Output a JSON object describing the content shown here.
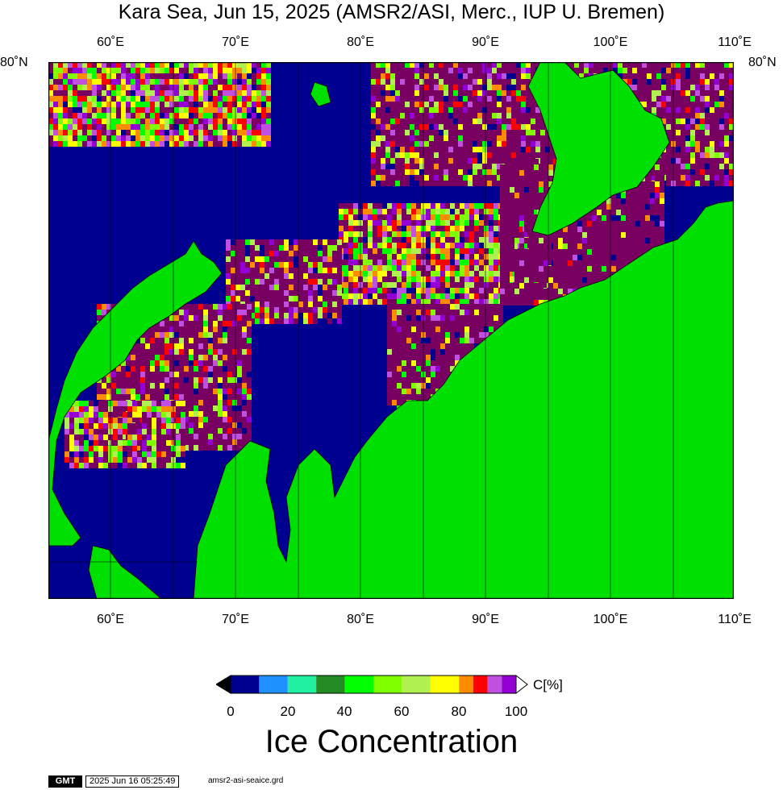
{
  "title": "Kara Sea, Jun 15, 2025 (AMSR2/ASI, Merc., IUP U. Bremen)",
  "map": {
    "lon_ticks": [
      {
        "value": 60,
        "label": "60˚E"
      },
      {
        "value": 70,
        "label": "70˚E"
      },
      {
        "value": 80,
        "label": "80˚E"
      },
      {
        "value": 90,
        "label": "90˚E"
      },
      {
        "value": 100,
        "label": "100˚E"
      },
      {
        "value": 110,
        "label": "110˚E"
      }
    ],
    "lat_label_left": "80˚N",
    "lat_label_right": "80˚N",
    "colors": {
      "open_water": "#000090",
      "land": "#00e000",
      "dense_ice": "#780060",
      "graticule": "#000000"
    }
  },
  "colorbar": {
    "bins": [
      {
        "range": [
          0,
          10
        ],
        "color": "#000090"
      },
      {
        "range": [
          10,
          20
        ],
        "color": "#1e90ff"
      },
      {
        "range": [
          20,
          30
        ],
        "color": "#20f0a0"
      },
      {
        "range": [
          30,
          40
        ],
        "color": "#228b22"
      },
      {
        "range": [
          40,
          50
        ],
        "color": "#00ff00"
      },
      {
        "range": [
          50,
          60
        ],
        "color": "#7fff00"
      },
      {
        "range": [
          60,
          70
        ],
        "color": "#b0f050"
      },
      {
        "range": [
          70,
          80
        ],
        "color": "#ffff00"
      },
      {
        "range": [
          80,
          85
        ],
        "color": "#ff8c00"
      },
      {
        "range": [
          85,
          90
        ],
        "color": "#ff0000"
      },
      {
        "range": [
          90,
          95
        ],
        "color": "#c050e0"
      },
      {
        "range": [
          95,
          100
        ],
        "color": "#9400d3"
      }
    ],
    "under_color": "#000000",
    "over_color": "#ffffff",
    "tick_labels": [
      "0",
      "20",
      "40",
      "60",
      "80",
      "100"
    ],
    "unit": "C[%]",
    "title": "Ice Concentration"
  },
  "footer": {
    "logo": "GMT",
    "timestamp": "2025 Jun 16 05:25:49",
    "grid_file": "amsr2-asi-seaice.grd"
  }
}
